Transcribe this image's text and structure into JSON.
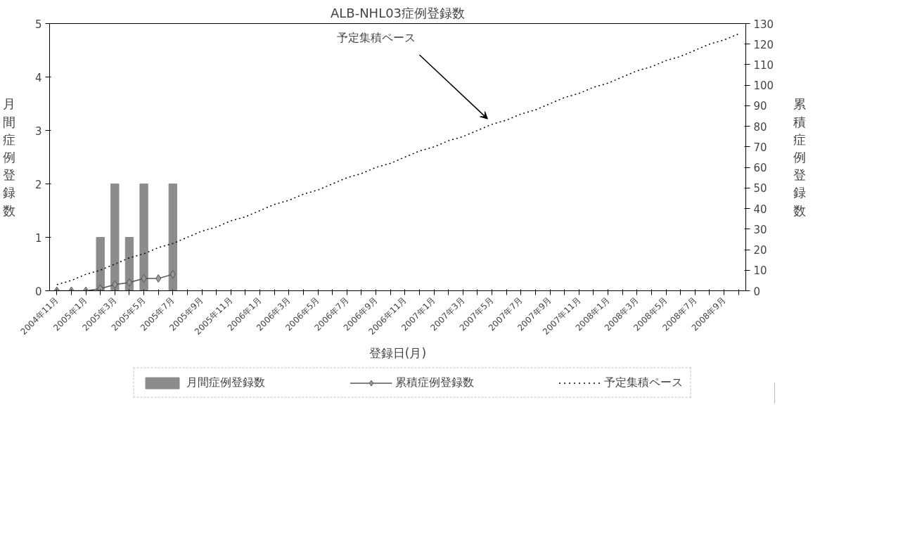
{
  "chart_data": {
    "type": "bar",
    "title": "ALB-NHL03症例登録数",
    "xlabel": "登録日(月)",
    "ylabel": "月間症例登録数",
    "y2label": "累積症例登録数",
    "categories": [
      "2004年11月",
      null,
      "2005年1月",
      null,
      "2005年3月",
      null,
      "2005年5月",
      null,
      "2005年7月",
      null,
      "2005年9月",
      null,
      "2005年11月",
      null,
      "2006年1月",
      null,
      "2006年3月",
      null,
      "2006年5月",
      null,
      "2006年7月",
      null,
      "2006年9月",
      null,
      "2006年11月",
      null,
      "2007年1月",
      null,
      "2007年3月",
      null,
      "2007年5月",
      null,
      "2007年7月",
      null,
      "2007年9月",
      null,
      "2007年11月",
      null,
      "2008年1月",
      null,
      "2008年3月",
      null,
      "2008年5月",
      null,
      "2008年7月",
      null,
      "2008年9月",
      null
    ],
    "series": [
      {
        "name": "月間症例登録数",
        "color": "#8c8c8c",
        "values": [
          0,
          0,
          0,
          1,
          2,
          1,
          2,
          0,
          2,
          null,
          null,
          null,
          null,
          null,
          null,
          null,
          null,
          null,
          null,
          null,
          null,
          null,
          null,
          null,
          null,
          null,
          null,
          null,
          null,
          null,
          null,
          null,
          null,
          null,
          null,
          null,
          null,
          null,
          null,
          null,
          null,
          null,
          null,
          null,
          null,
          null,
          null,
          null
        ]
      },
      {
        "name": "累積症例登録数",
        "type": "line",
        "axis": "y2",
        "color": "#555555",
        "marker": "diamond",
        "line_style": "solid",
        "values": [
          0,
          0,
          0,
          1,
          3,
          4,
          6,
          6,
          8,
          null,
          null,
          null,
          null,
          null,
          null,
          null,
          null,
          null,
          null,
          null,
          null,
          null,
          null,
          null,
          null,
          null,
          null,
          null,
          null,
          null,
          null,
          null,
          null,
          null,
          null,
          null,
          null,
          null,
          null,
          null,
          null,
          null,
          null,
          null,
          null,
          null,
          null,
          null
        ]
      },
      {
        "name": "予定集積ペース",
        "type": "line",
        "axis": "y2",
        "color": "#000000",
        "marker": "none",
        "line_style": "dotted",
        "values": [
          3,
          5,
          8,
          10,
          13,
          16,
          18,
          21,
          23,
          26,
          29,
          31,
          34,
          36,
          39,
          42,
          44,
          47,
          49,
          52,
          55,
          57,
          60,
          62,
          65,
          68,
          70,
          73,
          75,
          78,
          81,
          83,
          86,
          88,
          91,
          94,
          96,
          99,
          101,
          104,
          107,
          109,
          112,
          114,
          117,
          120,
          122,
          125
        ]
      }
    ],
    "ylim": [
      0,
      5
    ],
    "yticks": [
      0,
      1,
      2,
      3,
      4,
      5
    ],
    "y2lim": [
      0,
      130
    ],
    "y2ticks": [
      0,
      10,
      20,
      30,
      40,
      50,
      60,
      70,
      80,
      90,
      100,
      110,
      120,
      130
    ],
    "annotations": [
      "予定集積ペース"
    ],
    "grid": false,
    "legend": "bottom"
  }
}
